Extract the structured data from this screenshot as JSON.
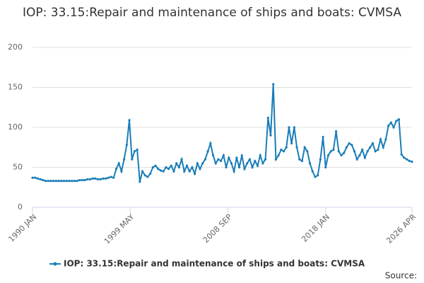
{
  "chart_data": {
    "type": "line",
    "title": "IOP: 33.15:Repair and maintenance of ships and boats: CVMSA",
    "source": "Source:",
    "x": [
      1990,
      1990.25,
      1990.5,
      1990.75,
      1991,
      1991.25,
      1991.5,
      1991.75,
      1992,
      1992.25,
      1992.5,
      1992.75,
      1993,
      1993.25,
      1993.5,
      1993.75,
      1994,
      1994.25,
      1994.5,
      1994.75,
      1995,
      1995.25,
      1995.5,
      1995.75,
      1996,
      1996.25,
      1996.5,
      1996.75,
      1997,
      1997.25,
      1997.5,
      1997.75,
      1998,
      1998.25,
      1998.5,
      1998.75,
      1999,
      1999.25,
      1999.5,
      1999.75,
      2000,
      2000.25,
      2000.5,
      2000.75,
      2001,
      2001.25,
      2001.5,
      2001.75,
      2002,
      2002.25,
      2002.5,
      2002.75,
      2003,
      2003.25,
      2003.5,
      2003.75,
      2004,
      2004.25,
      2004.5,
      2004.75,
      2005,
      2005.25,
      2005.5,
      2005.75,
      2006,
      2006.25,
      2006.5,
      2006.75,
      2007,
      2007.25,
      2007.5,
      2007.75,
      2008,
      2008.25,
      2008.5,
      2008.75,
      2009,
      2009.25,
      2009.5,
      2009.75,
      2010,
      2010.25,
      2010.5,
      2010.75,
      2011,
      2011.25,
      2011.5,
      2011.75,
      2012,
      2012.25,
      2012.5,
      2012.75,
      2013,
      2013.25,
      2013.5,
      2013.75,
      2014,
      2014.25,
      2014.5,
      2014.75,
      2015,
      2015.25,
      2015.5,
      2015.75,
      2016,
      2016.25,
      2016.5,
      2016.75,
      2017,
      2017.25,
      2017.5,
      2017.75,
      2018,
      2018.25,
      2018.5,
      2018.75,
      2019,
      2019.25,
      2019.5,
      2019.75,
      2020,
      2020.25,
      2020.5,
      2020.75,
      2021,
      2021.25,
      2021.5,
      2021.75,
      2022,
      2022.25,
      2022.5,
      2022.75,
      2023,
      2023.25,
      2023.5,
      2023.75,
      2024,
      2024.25,
      2024.5,
      2024.75,
      2025,
      2025.25,
      2025.5,
      2025.75,
      2026,
      2026.25
    ],
    "series": [
      {
        "name": "IOP: 33.15:Repair and maintenance of ships and boats: CVMSA",
        "color": "#1a7db8",
        "values": [
          37,
          37,
          36,
          35,
          34,
          33,
          33,
          33,
          33,
          33,
          33,
          33,
          33,
          33,
          33,
          33,
          33,
          33,
          34,
          34,
          34,
          35,
          35,
          36,
          36,
          35,
          35,
          36,
          36,
          37,
          38,
          37,
          48,
          55,
          45,
          60,
          78,
          109,
          60,
          70,
          72,
          32,
          45,
          40,
          38,
          42,
          50,
          52,
          48,
          46,
          45,
          50,
          48,
          52,
          45,
          55,
          50,
          60,
          45,
          52,
          45,
          50,
          42,
          55,
          48,
          55,
          60,
          70,
          80,
          65,
          55,
          60,
          58,
          65,
          50,
          62,
          55,
          45,
          62,
          50,
          65,
          48,
          55,
          60,
          50,
          58,
          52,
          65,
          55,
          60,
          112,
          90,
          154,
          60,
          65,
          72,
          70,
          75,
          100,
          80,
          100,
          75,
          60,
          58,
          75,
          70,
          55,
          45,
          38,
          40,
          60,
          88,
          50,
          65,
          70,
          72,
          95,
          70,
          65,
          68,
          75,
          80,
          78,
          70,
          60,
          65,
          72,
          62,
          70,
          75,
          80,
          70,
          72,
          85,
          75,
          85,
          102,
          106,
          100,
          108,
          110,
          66,
          62,
          60,
          58,
          57
        ]
      }
    ],
    "xlim": [
      1990,
      2026.25
    ],
    "xticks": [
      {
        "value": 1990,
        "label": "1990 JAN"
      },
      {
        "value": 1999.33,
        "label": "1999 MAY"
      },
      {
        "value": 2008.67,
        "label": "2008 SEP"
      },
      {
        "value": 2018,
        "label": "2018 JAN"
      },
      {
        "value": 2026.25,
        "label": "2026 APR"
      }
    ],
    "ylim": [
      0,
      200
    ],
    "yticks": [
      0,
      50,
      100,
      150,
      200
    ],
    "grid": true
  }
}
